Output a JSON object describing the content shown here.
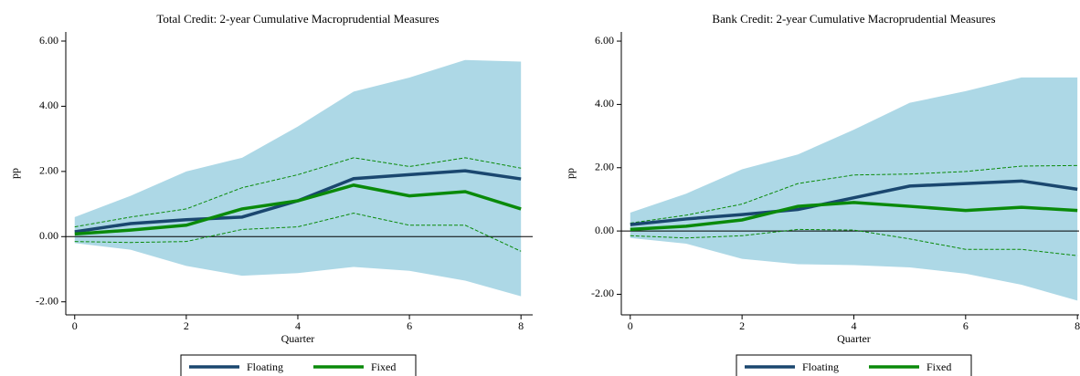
{
  "chart_data": [
    {
      "type": "line",
      "title": "Total Credit: 2-year Cumulative Macroprudential Measures",
      "xlabel": "Quarter",
      "ylabel": "pp",
      "x": [
        0,
        1,
        2,
        3,
        4,
        5,
        6,
        7,
        8
      ],
      "series": [
        {
          "name": "Floating",
          "color": "#1a476f",
          "values": [
            0.15,
            0.4,
            0.52,
            0.6,
            1.1,
            1.78,
            1.9,
            2.02,
            1.77
          ]
        },
        {
          "name": "Fixed",
          "color": "#0a8a0a",
          "values": [
            0.08,
            0.2,
            0.35,
            0.85,
            1.1,
            1.58,
            1.25,
            1.38,
            0.85
          ]
        }
      ],
      "ci_band": {
        "color": "#add8e6",
        "upper": [
          0.6,
          1.25,
          2.0,
          2.42,
          3.38,
          4.45,
          4.88,
          5.42,
          5.37
        ],
        "lower": [
          -0.2,
          -0.4,
          -0.9,
          -1.2,
          -1.12,
          -0.93,
          -1.05,
          -1.35,
          -1.83
        ]
      },
      "ci_dashed": {
        "color": "#0a8a0a",
        "upper": [
          0.3,
          0.6,
          0.85,
          1.5,
          1.9,
          2.42,
          2.15,
          2.42,
          2.1
        ],
        "lower": [
          -0.15,
          -0.18,
          -0.15,
          0.22,
          0.3,
          0.72,
          0.35,
          0.35,
          -0.45
        ]
      },
      "reference_line": 0,
      "xlim": [
        -0.16,
        8.21
      ],
      "xticks": [
        0,
        2,
        4,
        6,
        8
      ],
      "ylim": [
        -2.4,
        6.28
      ],
      "yticks": [
        {
          "value": -2,
          "label": "-2.00"
        },
        {
          "value": 0,
          "label": "0.00"
        },
        {
          "value": 2,
          "label": "2.00"
        },
        {
          "value": 4,
          "label": "4.00"
        },
        {
          "value": 6,
          "label": "6.00"
        }
      ],
      "legend": "bottom"
    },
    {
      "type": "line",
      "title": "Bank Credit: 2-year Cumulative Macroprudential Measures",
      "xlabel": "Quarter",
      "ylabel": "pp",
      "x": [
        0,
        1,
        2,
        3,
        4,
        5,
        6,
        7,
        8
      ],
      "series": [
        {
          "name": "Floating",
          "color": "#1a476f",
          "values": [
            0.2,
            0.38,
            0.52,
            0.68,
            1.05,
            1.42,
            1.5,
            1.58,
            1.32
          ]
        },
        {
          "name": "Fixed",
          "color": "#0a8a0a",
          "values": [
            0.05,
            0.15,
            0.35,
            0.78,
            0.9,
            0.78,
            0.65,
            0.75,
            0.65
          ]
        }
      ],
      "ci_band": {
        "color": "#add8e6",
        "upper": [
          0.58,
          1.18,
          1.95,
          2.42,
          3.2,
          4.05,
          4.42,
          4.85,
          4.85
        ],
        "lower": [
          -0.22,
          -0.4,
          -0.88,
          -1.05,
          -1.08,
          -1.15,
          -1.35,
          -1.7,
          -2.2
        ]
      },
      "ci_dashed": {
        "color": "#0a8a0a",
        "upper": [
          0.25,
          0.5,
          0.85,
          1.5,
          1.77,
          1.8,
          1.88,
          2.05,
          2.07
        ],
        "lower": [
          -0.15,
          -0.22,
          -0.15,
          0.05,
          0.03,
          -0.25,
          -0.58,
          -0.58,
          -0.78
        ]
      },
      "reference_line": 0,
      "xlim": [
        -0.16,
        8.03
      ],
      "xticks": [
        0,
        2,
        4,
        6,
        8
      ],
      "ylim": [
        -2.65,
        6.29
      ],
      "yticks": [
        {
          "value": -2,
          "label": "-2.00"
        },
        {
          "value": 0,
          "label": "0.00"
        },
        {
          "value": 2,
          "label": "2.00"
        },
        {
          "value": 4,
          "label": "4.00"
        },
        {
          "value": 6,
          "label": "6.00"
        }
      ],
      "legend": "bottom"
    }
  ]
}
